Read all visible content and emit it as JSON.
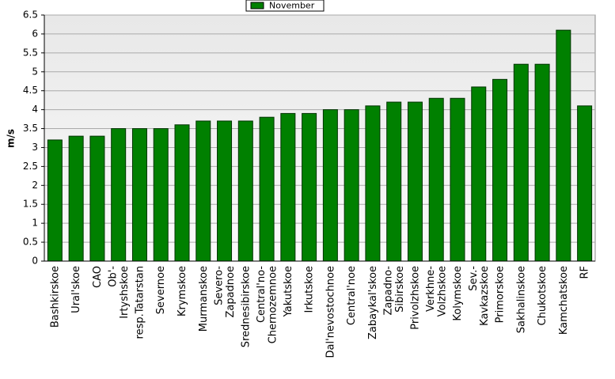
{
  "chart_data": {
    "type": "bar",
    "y_label": "m/s",
    "categories": [
      "Bashkirskoe",
      "Ural'skoe",
      "CAO",
      "Ob'-\nIrtyshskoe",
      "resp.Tatarstan",
      "Severnoe",
      "Krymskoe",
      "Murmanskoe",
      "Severo-\nZapadnoe",
      "Srednesibirskoe",
      "Central'no-\nChernozemnoe",
      "Yakutskoe",
      "Irkutskoe",
      "Dal'nevostochnoe",
      "Central'noe",
      "Zabaykal'skoe",
      "Zapadno-\nSibirskoe",
      "Privolzhskoe",
      "Verkhne-\nVolzhskoe",
      "Kolymskoe",
      "Sev.-\nKavkazskoe",
      "Primorskoe",
      "Sakhalinskoe",
      "Chukotskoe",
      "Kamchatskoe",
      "RF"
    ],
    "series": [
      {
        "name": "November",
        "color": "#008000",
        "values": [
          3.2,
          3.3,
          3.3,
          3.5,
          3.5,
          3.5,
          3.6,
          3.7,
          3.7,
          3.7,
          3.8,
          3.9,
          3.9,
          4.0,
          4.0,
          4.1,
          4.2,
          4.2,
          4.3,
          4.3,
          4.6,
          4.8,
          5.2,
          5.2,
          6.1,
          4.1
        ]
      }
    ],
    "ylim": [
      0,
      6.5
    ],
    "yticks": [
      0,
      0.5,
      1,
      1.5,
      2,
      2.5,
      3,
      3.5,
      4,
      4.5,
      5,
      5.5,
      6,
      6.5
    ],
    "grid": true,
    "legend": "top"
  }
}
